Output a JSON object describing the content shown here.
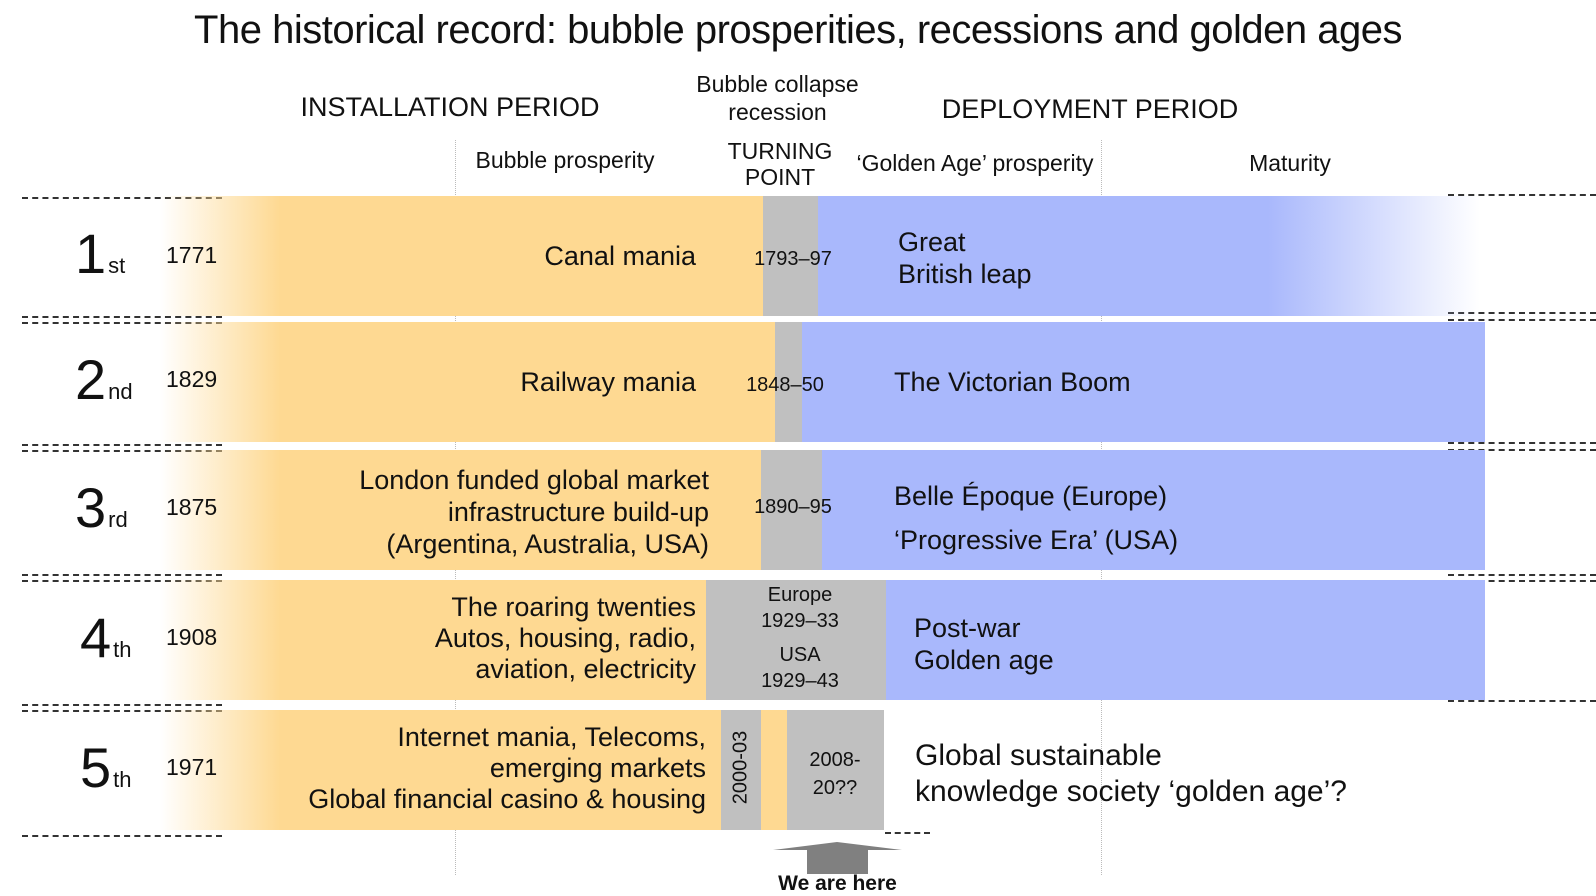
{
  "title": "The historical record: bubble prosperities, recessions and golden ages",
  "headers": {
    "installation": "INSTALLATION PERIOD",
    "collapse": [
      "Bubble collapse",
      "recession"
    ],
    "deployment": "DEPLOYMENT PERIOD",
    "bubble_prosperity": "Bubble prosperity",
    "turning_point": [
      "TURNING",
      "POINT"
    ],
    "golden_age": "‘Golden Age’ prosperity",
    "maturity": "Maturity"
  },
  "colors": {
    "installation": "#fed992",
    "turning": "#c0c0c0",
    "deployment": "#a9b8fc",
    "arrow": "#808080"
  },
  "revolutions": [
    {
      "ordinal": "1",
      "suffix": "st",
      "year": "1771",
      "installation": [
        "Canal mania"
      ],
      "turning": [
        "1793–97"
      ],
      "deployment": [
        "Great",
        "British leap"
      ]
    },
    {
      "ordinal": "2",
      "suffix": "nd",
      "year": "1829",
      "installation": [
        "Railway mania"
      ],
      "turning": [
        "1848–50"
      ],
      "deployment": [
        "The Victorian  Boom"
      ]
    },
    {
      "ordinal": "3",
      "suffix": "rd",
      "year": "1875",
      "installation": [
        "London funded global market",
        "infrastructure build-up",
        "(Argentina, Australia, USA)"
      ],
      "turning": [
        "1890–95"
      ],
      "deployment": [
        "Belle Époque (Europe)",
        "‘Progressive Era’ (USA)"
      ]
    },
    {
      "ordinal": "4",
      "suffix": "th",
      "year": "1908",
      "installation": [
        "The roaring twenties",
        "Autos, housing, radio,",
        "aviation, electricity"
      ],
      "turning": [
        "Europe",
        "1929–33",
        "USA",
        "1929–43"
      ],
      "deployment": [
        "Post-war",
        "Golden age"
      ]
    },
    {
      "ordinal": "5",
      "suffix": "th",
      "year": "1971",
      "installation": [
        "Internet mania, Telecoms,",
        "emerging markets",
        "Global financial casino & housing"
      ],
      "turning": [
        "2000-03",
        "2008-",
        "20??"
      ],
      "deployment": [
        "Global sustainable",
        "knowledge society ‘golden age’?"
      ]
    }
  ],
  "marker": "We are here"
}
